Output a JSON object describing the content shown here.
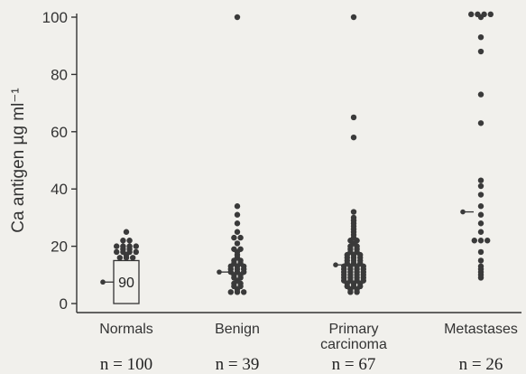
{
  "chart_data": {
    "type": "scatter",
    "title": "",
    "ylabel": "Ca antigen µg ml⁻¹",
    "ylim": [
      0,
      100
    ],
    "yticks": [
      "0",
      "20",
      "40",
      "60",
      "80",
      "100"
    ],
    "grid": false,
    "groups": [
      {
        "label": "Normals",
        "n_text": "n = 100",
        "median": 7.5,
        "box": {
          "low": 0,
          "high": 15,
          "text": "90"
        },
        "values": [
          16,
          16,
          16,
          17,
          18,
          18,
          18,
          18,
          19,
          19,
          20,
          20,
          20,
          20,
          22,
          22,
          25
        ]
      },
      {
        "label": "Benign",
        "n_text": "n = 39",
        "median": 11,
        "values": [
          100,
          34,
          31,
          28,
          25,
          23,
          23,
          21,
          19,
          19,
          18,
          17,
          16,
          15,
          15,
          14,
          14,
          13,
          13,
          13,
          12,
          12,
          12,
          11,
          11,
          11,
          10,
          10,
          9,
          9,
          8,
          7,
          7,
          6,
          6,
          5,
          4,
          4,
          4
        ]
      },
      {
        "label": "Primary carcinoma",
        "label_lines": [
          "Primary",
          "carcinoma"
        ],
        "n_text": "n = 67",
        "median": 13.5,
        "values": [
          100,
          65,
          58,
          32,
          30,
          29,
          28,
          27,
          26,
          25,
          24,
          23,
          22,
          22,
          21,
          20,
          20,
          19,
          19,
          18,
          18,
          17,
          17,
          17,
          16,
          16,
          16,
          15,
          15,
          15,
          14,
          14,
          14,
          13,
          13,
          13,
          13,
          12,
          12,
          12,
          12,
          11,
          11,
          11,
          11,
          10,
          10,
          10,
          10,
          9,
          9,
          9,
          9,
          8,
          8,
          8,
          8,
          7,
          7,
          7,
          6,
          6,
          6,
          5,
          5,
          4,
          4
        ]
      },
      {
        "label": "Metastases",
        "n_text": "n = 26",
        "median": 32,
        "values": [
          101,
          101,
          101,
          101,
          100,
          93,
          88,
          73,
          63,
          43,
          41,
          38,
          34,
          31,
          28,
          25,
          22,
          22,
          22,
          18,
          15,
          13,
          12,
          11,
          10,
          9
        ]
      }
    ]
  },
  "colors": {
    "background": "#f1f0ec",
    "ink": "#333333",
    "dot": "#3a3a3a"
  }
}
